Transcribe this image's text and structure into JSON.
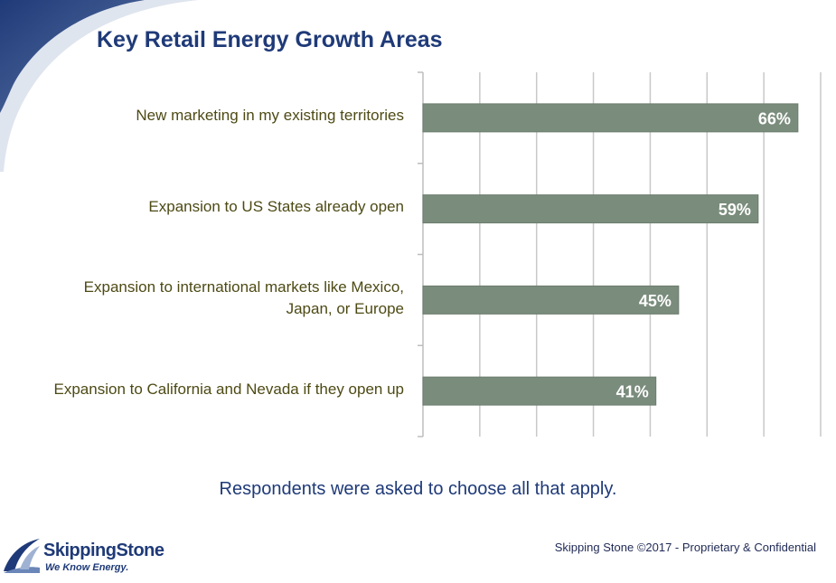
{
  "slide": {
    "title": "Key Retail Energy Growth Areas",
    "note": "Respondents were asked to choose all that apply.",
    "footer": "Skipping Stone ©2017 - Proprietary & Confidential"
  },
  "logo": {
    "name": "SkippingStone",
    "tagline": "We Know Energy."
  },
  "chart_data": {
    "type": "bar",
    "orientation": "horizontal",
    "categories": [
      "New marketing in my existing territories",
      "Expansion to US States already open",
      "Expansion to international markets like Mexico, Japan, or Europe",
      "Expansion to California and Nevada if they open up"
    ],
    "category_lines": [
      [
        "New marketing in my existing territories"
      ],
      [
        "Expansion to US States already open"
      ],
      [
        "Expansion to international markets like Mexico,",
        "Japan, or Europe"
      ],
      [
        "Expansion to California and Nevada if they open up"
      ]
    ],
    "values": [
      66,
      59,
      45,
      41
    ],
    "data_labels": [
      "66%",
      "59%",
      "45%",
      "41%"
    ],
    "xlim": [
      0,
      70
    ],
    "grid": true,
    "legend": "none",
    "bar_color": "#7a8c7c",
    "label_color": "#ffffff",
    "category_label_color": "#4d4a14",
    "gridline_color": "#c8c8c8"
  },
  "colors": {
    "title": "#1f3a78",
    "swoosh_dark": "#1f3a78",
    "swoosh_light": "#c9d3e3"
  }
}
